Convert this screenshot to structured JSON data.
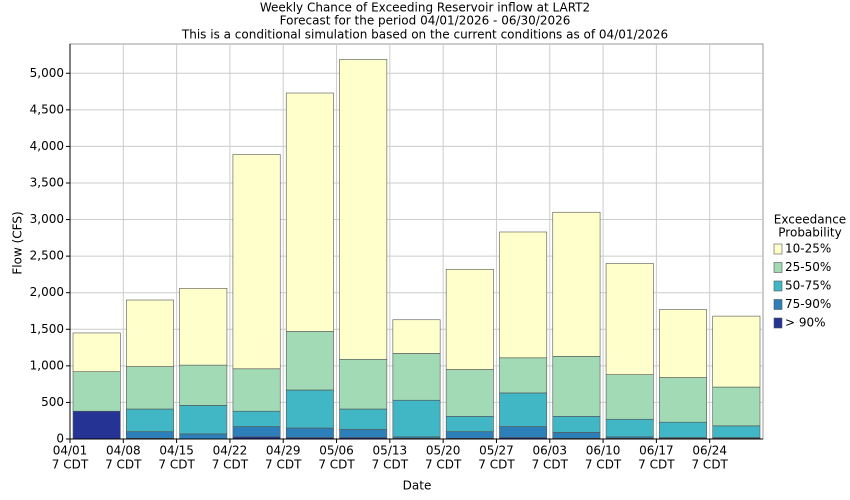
{
  "chart_data": {
    "type": "stacked_bar",
    "title": "Weekly Chance of Exceeding Reservoir inflow at LART2",
    "subtitle": "Forecast for the period 04/01/2026 - 06/30/2026",
    "note": "This is a conditional simulation based on the current conditions as of 04/01/2026",
    "xlabel": "Date",
    "ylabel": "Flow (CFS)",
    "legend_title": [
      "Exceedance",
      "Probability"
    ],
    "categories": [
      [
        "04/01",
        "7 CDT"
      ],
      [
        "04/08",
        "7 CDT"
      ],
      [
        "04/15",
        "7 CDT"
      ],
      [
        "04/22",
        "7 CDT"
      ],
      [
        "04/29",
        "7 CDT"
      ],
      [
        "05/06",
        "7 CDT"
      ],
      [
        "05/13",
        "7 CDT"
      ],
      [
        "05/20",
        "7 CDT"
      ],
      [
        "05/27",
        "7 CDT"
      ],
      [
        "06/03",
        "7 CDT"
      ],
      [
        "06/10",
        "7 CDT"
      ],
      [
        "06/17",
        "7 CDT"
      ],
      [
        "06/24",
        "7 CDT"
      ]
    ],
    "series": [
      {
        "name": "> 90%",
        "color": "#253494",
        "values": [
          380,
          10,
          0,
          30,
          20,
          20,
          10,
          10,
          20,
          10,
          10,
          10,
          10
        ]
      },
      {
        "name": "75-90%",
        "color": "#2c7fb8",
        "values": [
          0,
          90,
          70,
          140,
          130,
          110,
          20,
          90,
          150,
          80,
          20,
          10,
          10
        ]
      },
      {
        "name": "50-75%",
        "color": "#41b6c4",
        "values": [
          0,
          310,
          390,
          210,
          520,
          280,
          500,
          210,
          460,
          220,
          240,
          210,
          160
        ]
      },
      {
        "name": "25-50%",
        "color": "#a1dab4",
        "values": [
          540,
          580,
          550,
          580,
          800,
          680,
          640,
          640,
          480,
          820,
          610,
          610,
          530
        ]
      },
      {
        "name": "10-25%",
        "color": "#ffffcc",
        "values": [
          530,
          910,
          1050,
          2930,
          3260,
          4100,
          460,
          1370,
          1720,
          1970,
          1520,
          930,
          970
        ]
      }
    ],
    "ylim": [
      0,
      5400
    ],
    "yticks": [
      0,
      500,
      {
        "value": 1000,
        "label": "1,000"
      },
      {
        "value": 1500,
        "label": "1,500"
      },
      {
        "value": 2000,
        "label": "2,000"
      },
      {
        "value": 2500,
        "label": "2,500"
      },
      {
        "value": 3000,
        "label": "3,000"
      },
      {
        "value": 3500,
        "label": "3,500"
      },
      {
        "value": 4000,
        "label": "4,000"
      },
      {
        "value": 4500,
        "label": "4,500"
      },
      {
        "value": 5000,
        "label": "5,000"
      }
    ],
    "grid": true,
    "legend": "right"
  }
}
